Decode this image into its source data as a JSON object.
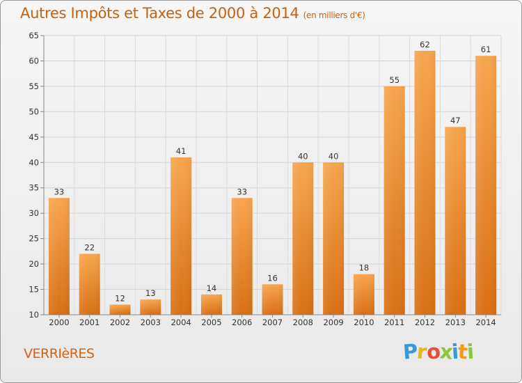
{
  "header": {
    "title": "Autres Impôts et Taxes de 2000 à 2014",
    "unit": "(en milliers d'€)"
  },
  "footer": {
    "commune": "VERRIèRES",
    "logo_letters": [
      "P",
      "r",
      "o",
      "x",
      "i",
      "t",
      "i"
    ],
    "logo_colors": [
      "#3a9ad9",
      "#e8b820",
      "#e74c3c",
      "#8cc63f",
      "#3a9ad9",
      "#f39c12",
      "#8cc63f"
    ]
  },
  "chart_data": {
    "type": "bar",
    "title": "Autres Impôts et Taxes de 2000 à 2014",
    "categories": [
      "2000",
      "2001",
      "2002",
      "2003",
      "2004",
      "2005",
      "2006",
      "2007",
      "2008",
      "2009",
      "2010",
      "2011",
      "2012",
      "2013",
      "2014"
    ],
    "values": [
      33,
      22,
      12,
      13,
      41,
      14,
      33,
      16,
      40,
      40,
      18,
      55,
      62,
      47,
      61
    ],
    "ylim": [
      10,
      65
    ],
    "yticks": [
      10,
      15,
      20,
      25,
      30,
      35,
      40,
      45,
      50,
      55,
      60,
      65
    ],
    "grid": true,
    "bar_color": "#f39a3e",
    "xlabel": "",
    "ylabel": ""
  }
}
